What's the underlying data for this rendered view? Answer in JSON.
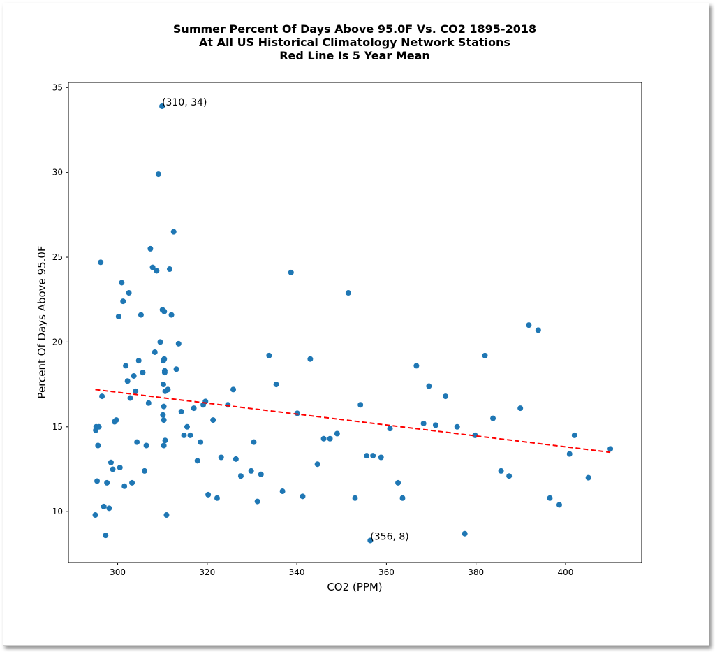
{
  "chart_data": {
    "type": "scatter",
    "title": [
      "Summer Percent Of Days Above 95.0F Vs. CO2 1895-2018",
      "At All US Historical Climatology Network Stations",
      "Red Line Is 5 Year Mean"
    ],
    "xlabel": "CO2 (PPM)",
    "ylabel": "Percent Of Days Above 95.0F",
    "xlim": [
      289,
      417
    ],
    "ylim": [
      7.0,
      35.3
    ],
    "xticks": [
      300,
      320,
      340,
      360,
      380,
      400
    ],
    "yticks": [
      10,
      15,
      20,
      25,
      30,
      35
    ],
    "grid": false,
    "colors": {
      "points": "#1f77b4",
      "trend": "#ff0000"
    },
    "points": [
      [
        295.0,
        9.8
      ],
      [
        295.1,
        14.8
      ],
      [
        295.2,
        15.0
      ],
      [
        295.4,
        11.8
      ],
      [
        295.6,
        13.9
      ],
      [
        295.8,
        15.0
      ],
      [
        296.2,
        24.7
      ],
      [
        296.5,
        16.8
      ],
      [
        296.9,
        10.3
      ],
      [
        297.3,
        8.6
      ],
      [
        297.6,
        11.7
      ],
      [
        298.1,
        10.2
      ],
      [
        298.5,
        12.9
      ],
      [
        298.9,
        12.5
      ],
      [
        299.3,
        15.3
      ],
      [
        299.7,
        15.4
      ],
      [
        300.2,
        21.5
      ],
      [
        300.5,
        12.6
      ],
      [
        300.9,
        23.5
      ],
      [
        301.2,
        22.4
      ],
      [
        301.5,
        11.5
      ],
      [
        301.8,
        18.6
      ],
      [
        302.2,
        17.7
      ],
      [
        302.5,
        22.9
      ],
      [
        302.8,
        16.7
      ],
      [
        303.2,
        11.7
      ],
      [
        303.6,
        18.0
      ],
      [
        304.0,
        17.1
      ],
      [
        304.3,
        14.1
      ],
      [
        304.7,
        18.9
      ],
      [
        305.2,
        21.6
      ],
      [
        305.6,
        18.2
      ],
      [
        306.0,
        12.4
      ],
      [
        306.4,
        13.9
      ],
      [
        306.9,
        16.4
      ],
      [
        307.3,
        25.5
      ],
      [
        307.8,
        24.4
      ],
      [
        308.3,
        19.4
      ],
      [
        308.7,
        24.2
      ],
      [
        309.1,
        29.9
      ],
      [
        309.5,
        20.0
      ],
      [
        309.9,
        33.9
      ],
      [
        310.0,
        21.9
      ],
      [
        310.1,
        15.7
      ],
      [
        310.2,
        18.9
      ],
      [
        310.2,
        17.5
      ],
      [
        310.3,
        16.2
      ],
      [
        310.3,
        15.4
      ],
      [
        310.3,
        13.9
      ],
      [
        310.4,
        21.8
      ],
      [
        310.4,
        19.0
      ],
      [
        310.5,
        18.3
      ],
      [
        310.5,
        18.2
      ],
      [
        310.6,
        17.1
      ],
      [
        310.6,
        14.2
      ],
      [
        310.9,
        9.8
      ],
      [
        311.2,
        17.2
      ],
      [
        311.6,
        24.3
      ],
      [
        312.0,
        21.6
      ],
      [
        312.5,
        26.5
      ],
      [
        313.1,
        18.4
      ],
      [
        313.6,
        19.9
      ],
      [
        314.2,
        15.9
      ],
      [
        314.8,
        14.5
      ],
      [
        315.5,
        15.0
      ],
      [
        316.2,
        14.5
      ],
      [
        317.0,
        16.1
      ],
      [
        317.8,
        13.0
      ],
      [
        318.5,
        14.1
      ],
      [
        319.1,
        16.3
      ],
      [
        319.6,
        16.5
      ],
      [
        320.2,
        11.0
      ],
      [
        321.3,
        15.4
      ],
      [
        322.2,
        10.8
      ],
      [
        323.1,
        13.2
      ],
      [
        324.6,
        16.3
      ],
      [
        325.8,
        17.2
      ],
      [
        326.4,
        13.1
      ],
      [
        327.5,
        12.1
      ],
      [
        329.8,
        12.4
      ],
      [
        330.4,
        14.1
      ],
      [
        331.2,
        10.6
      ],
      [
        332.0,
        12.2
      ],
      [
        333.8,
        19.2
      ],
      [
        335.4,
        17.5
      ],
      [
        336.8,
        11.2
      ],
      [
        338.7,
        24.1
      ],
      [
        340.1,
        15.8
      ],
      [
        341.3,
        10.9
      ],
      [
        343.0,
        19.0
      ],
      [
        344.6,
        12.8
      ],
      [
        346.0,
        14.3
      ],
      [
        347.4,
        14.3
      ],
      [
        349.0,
        14.6
      ],
      [
        351.5,
        22.9
      ],
      [
        353.0,
        10.8
      ],
      [
        354.2,
        16.3
      ],
      [
        355.6,
        13.3
      ],
      [
        356.4,
        8.3
      ],
      [
        357.0,
        13.3
      ],
      [
        358.8,
        13.2
      ],
      [
        360.8,
        14.9
      ],
      [
        362.6,
        11.7
      ],
      [
        363.6,
        10.8
      ],
      [
        366.7,
        18.6
      ],
      [
        368.3,
        15.2
      ],
      [
        369.5,
        17.4
      ],
      [
        371.0,
        15.1
      ],
      [
        373.2,
        16.8
      ],
      [
        375.8,
        15.0
      ],
      [
        377.5,
        8.7
      ],
      [
        379.8,
        14.5
      ],
      [
        382.0,
        19.2
      ],
      [
        383.8,
        15.5
      ],
      [
        385.6,
        12.4
      ],
      [
        387.4,
        12.1
      ],
      [
        389.9,
        16.1
      ],
      [
        391.8,
        21.0
      ],
      [
        393.9,
        20.7
      ],
      [
        396.5,
        10.8
      ],
      [
        398.6,
        10.4
      ],
      [
        400.9,
        13.4
      ],
      [
        402.0,
        14.5
      ],
      [
        405.1,
        12.0
      ],
      [
        410.0,
        13.7
      ]
    ],
    "trend_line": {
      "x": [
        295.0,
        410.0
      ],
      "y": [
        17.2,
        13.5
      ]
    },
    "annotations": [
      {
        "text": "(310, 34)",
        "x": 309.9,
        "y": 33.9
      },
      {
        "text": "(356, 8)",
        "x": 356.4,
        "y": 8.3
      }
    ]
  }
}
